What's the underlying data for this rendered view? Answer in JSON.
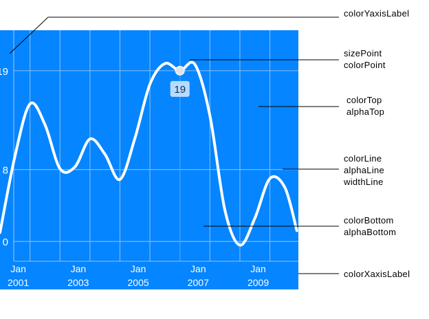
{
  "chart_data": {
    "type": "line",
    "x": [
      2000.0,
      2000.5,
      2001.0,
      2001.5,
      2002.0,
      2002.5,
      2003.0,
      2003.5,
      2004.0,
      2004.5,
      2005.0,
      2005.5,
      2006.0,
      2006.5,
      2007.0,
      2007.5,
      2008.0,
      2008.5,
      2009.0,
      2009.5,
      2009.9
    ],
    "y": [
      1.0,
      9.5,
      15.3,
      13.0,
      8.1,
      8.3,
      11.4,
      9.7,
      6.9,
      11.5,
      17.5,
      19.8,
      19.0,
      19.7,
      14.0,
      3.5,
      -0.4,
      2.6,
      7.0,
      6.0,
      1.2
    ],
    "ylim": [
      -2.2,
      23.5
    ],
    "xlim": [
      2000.0,
      2009.95
    ],
    "y_ticks": [
      {
        "value": 0,
        "label": "0"
      },
      {
        "value": 8,
        "label": "8"
      },
      {
        "value": 19,
        "label": "19"
      }
    ],
    "x_ticks": [
      {
        "value": 2001,
        "month": "Jan",
        "year": "2001"
      },
      {
        "value": 2003,
        "month": "Jan",
        "year": "2003"
      },
      {
        "value": 2005,
        "month": "Jan",
        "year": "2005"
      },
      {
        "value": 2007,
        "month": "Jan",
        "year": "2007"
      },
      {
        "value": 2009,
        "month": "Jan",
        "year": "2009"
      }
    ],
    "x_minor_grid": [
      2000,
      2002,
      2004,
      2006,
      2008
    ],
    "highlight": {
      "x": 2006.0,
      "y": 19,
      "label": "19"
    },
    "grid": true,
    "colors": {
      "plot_background": "#0585ff",
      "line": "#ffffff",
      "grid": "#7ab8f4",
      "axis_label": "#ffffff",
      "tooltip_background": "#b7dbff",
      "tooltip_text": "#0d2f5c",
      "point": "#dfe3ea",
      "callout_line": "#000000"
    }
  },
  "callouts": {
    "y_axis_label": "colorYaxisLabel",
    "point": [
      "sizePoint",
      "colorPoint"
    ],
    "top": [
      "colorTop",
      "alphaTop"
    ],
    "line": [
      "colorLine",
      "alphaLine",
      "widthLine"
    ],
    "bottom": [
      "colorBottom",
      "alphaBottom"
    ],
    "x_axis_label": "colorXaxisLabel"
  }
}
